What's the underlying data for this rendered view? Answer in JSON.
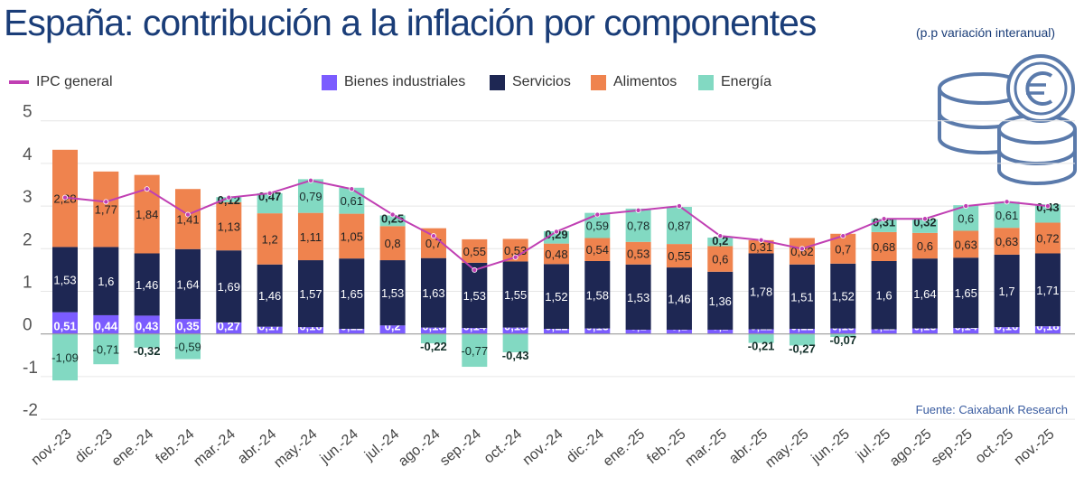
{
  "title": "España: contribución a la inflación por componentes",
  "subtitle": "(p.p variación interanual)",
  "source": "Fuente: Caixabank Research",
  "icon": "euro-coins-icon",
  "colors": {
    "bienes": "#7b5cff",
    "servicios": "#1e2753",
    "alimentos": "#ef834e",
    "energia": "#82d9c2",
    "ipc": "#c03fb3",
    "title": "#1a3d78",
    "icon": "#5a7aab"
  },
  "chart_data": {
    "type": "bar",
    "stacked": true,
    "categories": [
      "nov.-23",
      "dic.-23",
      "ene.-24",
      "feb.-24",
      "mar.-24",
      "abr.-24",
      "may.-24",
      "jun.-24",
      "jul.-24",
      "ago.-24",
      "sep.-24",
      "oct.-24",
      "nov.-24",
      "dic.-24",
      "ene.-25",
      "feb.-25",
      "mar.-25",
      "abr.-25",
      "may.-25",
      "jun.-25",
      "jul.-25",
      "ago.-25",
      "sep.-25",
      "oct.-25",
      "nov.-25"
    ],
    "series": [
      {
        "name": "Bienes industriales",
        "values": [
          0.51,
          0.44,
          0.43,
          0.35,
          0.27,
          0.17,
          0.16,
          0.12,
          0.2,
          0.15,
          0.14,
          0.15,
          0.12,
          0.13,
          0.1,
          0.1,
          0.1,
          0.11,
          0.12,
          0.13,
          0.11,
          0.13,
          0.14,
          0.16,
          0.18
        ]
      },
      {
        "name": "Servicios",
        "values": [
          1.53,
          1.6,
          1.46,
          1.64,
          1.69,
          1.46,
          1.57,
          1.65,
          1.53,
          1.63,
          1.53,
          1.55,
          1.52,
          1.58,
          1.53,
          1.46,
          1.36,
          1.78,
          1.51,
          1.52,
          1.6,
          1.64,
          1.65,
          1.7,
          1.71
        ]
      },
      {
        "name": "Alimentos",
        "values": [
          2.28,
          1.77,
          1.84,
          1.41,
          1.13,
          1.2,
          1.11,
          1.05,
          0.8,
          0.7,
          0.55,
          0.53,
          0.48,
          0.54,
          0.53,
          0.55,
          0.6,
          0.31,
          0.62,
          0.7,
          0.68,
          0.6,
          0.63,
          0.63,
          0.72
        ]
      },
      {
        "name": "Energía",
        "values": [
          -1.09,
          -0.71,
          -0.32,
          -0.59,
          0.12,
          0.47,
          0.79,
          0.61,
          0.25,
          -0.22,
          -0.77,
          -0.43,
          0.29,
          0.59,
          0.78,
          0.87,
          0.2,
          -0.21,
          -0.27,
          -0.07,
          0.31,
          0.32,
          0.6,
          0.61,
          0.43
        ]
      },
      {
        "name": "IPC general",
        "type": "line",
        "values": [
          3.2,
          3.1,
          3.4,
          2.8,
          3.2,
          3.3,
          3.6,
          3.4,
          2.8,
          2.3,
          1.5,
          1.8,
          2.4,
          2.8,
          2.9,
          3.0,
          2.3,
          2.2,
          2.0,
          2.3,
          2.7,
          2.7,
          3.0,
          3.1,
          3.0
        ]
      }
    ],
    "yticks": [
      5,
      4,
      3,
      2,
      1,
      0,
      -1,
      -2
    ],
    "ytick_labels": [
      "5",
      "4",
      "3",
      "2",
      "1",
      "0",
      "-1",
      "-2"
    ],
    "ylim": [
      -2,
      5
    ],
    "grid": true,
    "legend": "top"
  }
}
